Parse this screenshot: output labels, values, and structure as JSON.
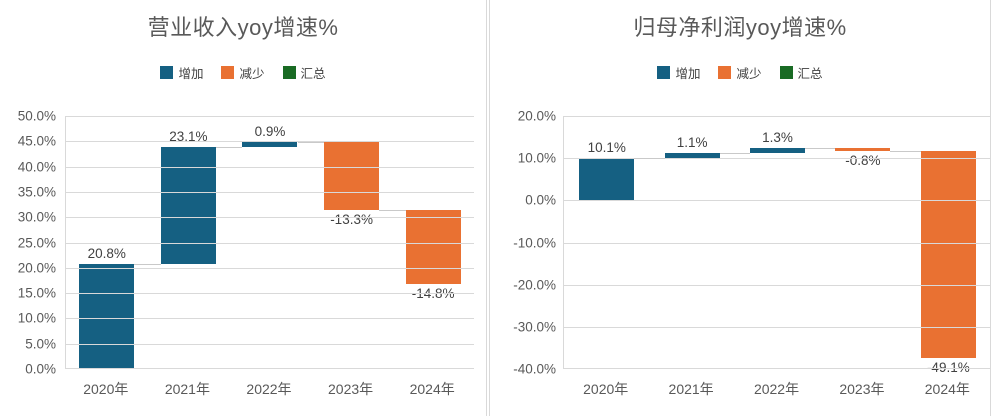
{
  "colors": {
    "increase": "#156082",
    "decrease": "#E97132",
    "total": "#196B24",
    "gridline": "#d9d9d9",
    "connector": "#c9c9c9",
    "axis_text": "#595959",
    "label_text": "#404040",
    "panel_border": "#d9d9d9"
  },
  "chart_data": [
    {
      "type": "waterfall",
      "title": "营业收入yoy增速%",
      "legend_position": "top",
      "legend": [
        {
          "label": "增加",
          "color": "#156082"
        },
        {
          "label": "减少",
          "color": "#E97132"
        },
        {
          "label": "汇总",
          "color": "#196B24"
        }
      ],
      "categories": [
        "2020年",
        "2021年",
        "2022年",
        "2023年",
        "2024年"
      ],
      "values": [
        20.8,
        23.1,
        0.9,
        -13.3,
        -14.8
      ],
      "value_labels": [
        "20.8%",
        "23.1%",
        "0.9%",
        "-13.3%",
        "-14.8%"
      ],
      "cumulative": [
        20.8,
        43.9,
        44.8,
        31.5,
        16.7
      ],
      "ylim": [
        0,
        50
      ],
      "ytick_step": 5,
      "yticks": [
        "50.0%",
        "45.0%",
        "40.0%",
        "35.0%",
        "30.0%",
        "25.0%",
        "20.0%",
        "15.0%",
        "10.0%",
        "5.0%",
        "0.0%"
      ],
      "grid": true
    },
    {
      "type": "waterfall",
      "title": "归母净利润yoy增速%",
      "legend_position": "top",
      "legend": [
        {
          "label": "增加",
          "color": "#156082"
        },
        {
          "label": "减少",
          "color": "#E97132"
        },
        {
          "label": "汇总",
          "color": "#196B24"
        }
      ],
      "categories": [
        "2020年",
        "2021年",
        "2022年",
        "2023年",
        "2024年"
      ],
      "values": [
        10.1,
        1.1,
        1.3,
        -0.8,
        -49.1
      ],
      "value_labels": [
        "10.1%",
        "1.1%",
        "1.3%",
        "-0.8%",
        "-49.1%"
      ],
      "cumulative": [
        10.1,
        11.2,
        12.5,
        11.7,
        -37.4
      ],
      "ylim": [
        -40,
        20
      ],
      "ytick_step": 10,
      "yticks": [
        "20.0%",
        "10.0%",
        "0.0%",
        "-10.0%",
        "-20.0%",
        "-30.0%",
        "-40.0%"
      ],
      "grid": true
    }
  ]
}
